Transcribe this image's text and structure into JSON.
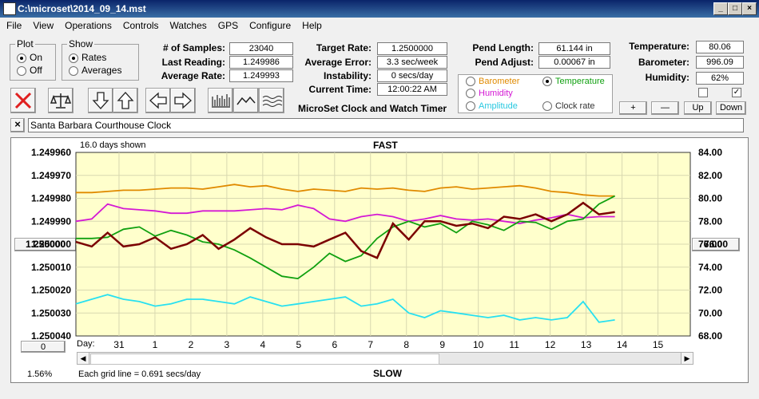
{
  "window": {
    "title": "C:\\microset\\2014_09_14.mst"
  },
  "menu": [
    "File",
    "View",
    "Operations",
    "Controls",
    "Watches",
    "GPS",
    "Configure",
    "Help"
  ],
  "plot_group": {
    "label": "Plot",
    "on": "On",
    "off": "Off",
    "selected": "On"
  },
  "show_group": {
    "label": "Show",
    "rates": "Rates",
    "averages": "Averages",
    "selected": "Rates"
  },
  "stats": {
    "samples_label": "# of Samples:",
    "samples": "23040",
    "last_reading_label": "Last Reading:",
    "last_reading": "1.249986",
    "average_rate_label": "Average Rate:",
    "average_rate": "1.249993",
    "target_rate_label": "Target Rate:",
    "target_rate": "1.2500000",
    "average_error_label": "Average Error:",
    "average_error": "3.3 sec/week",
    "instability_label": "Instability:",
    "instability": "0 secs/day",
    "current_time_label": "Current Time:",
    "current_time": "12:00:22 AM",
    "pend_length_label": "Pend Length:",
    "pend_length": "61.144 in",
    "pend_adjust_label": "Pend Adjust:",
    "pend_adjust": "0.00067 in",
    "temperature_label": "Temperature:",
    "temperature": "80.06",
    "barometer_label": "Barometer:",
    "barometer": "996.09",
    "humidity_label": "Humidity:",
    "humidity": "62%"
  },
  "app_caption": "MicroSet Clock and Watch Timer",
  "aux_legend": {
    "barometer": "Barometer",
    "temperature": "Temperature",
    "humidity": "Humidity",
    "amplitude": "Amplitude",
    "clock_rate": "Clock rate",
    "selected": "Temperature"
  },
  "aux_buttons": {
    "plus": "+",
    "minus": "—",
    "up": "Up",
    "down": "Down"
  },
  "clock_name": "Santa Barbara Courthouse Clock",
  "close_x": "×",
  "chart_header": {
    "days_shown": "16.0 days shown",
    "fast": "FAST",
    "slow": "SLOW"
  },
  "chart_footer": {
    "percent": "1.56%",
    "grid_note": "Each grid line = 0.691 secs/day",
    "day_label": "Day:"
  },
  "offset_box": "1.250000",
  "right_box": "76.00",
  "left_bottom_box": "0",
  "colors": {
    "temperature": "#e08a00",
    "humidity": "#d419d4",
    "clock_rate": "#7b0000",
    "barometer": "#10a010",
    "amplitude": "#28e0f0",
    "plot_bg": "#ffffcc"
  },
  "chart_data": {
    "type": "line",
    "y_left_ticks": [
      "1.249960",
      "1.249970",
      "1.249980",
      "1.249990",
      "1.250000",
      "1.250010",
      "1.250020",
      "1.250030",
      "1.250040"
    ],
    "y_right_ticks": [
      "84.00",
      "82.00",
      "80.00",
      "78.00",
      "76.00",
      "74.00",
      "72.00",
      "70.00",
      "68.00"
    ],
    "x_ticks": [
      "31",
      "1",
      "2",
      "3",
      "4",
      "5",
      "6",
      "7",
      "8",
      "9",
      "10",
      "11",
      "12",
      "13",
      "14",
      "15"
    ],
    "y_left_range": [
      1.24996,
      1.25004
    ],
    "y_right_range": [
      68,
      84
    ],
    "series": [
      {
        "name": "Temperature",
        "axis": "right",
        "values": [
          80.5,
          80.5,
          80.6,
          80.7,
          80.7,
          80.8,
          80.9,
          80.9,
          80.8,
          81.0,
          81.2,
          81.0,
          81.1,
          80.8,
          80.6,
          80.8,
          80.7,
          80.6,
          80.9,
          80.8,
          80.9,
          80.7,
          80.6,
          80.9,
          81.0,
          80.8,
          80.9,
          81.0,
          81.1,
          80.9,
          80.6,
          80.5,
          80.3,
          80.2,
          80.2
        ]
      },
      {
        "name": "Humidity",
        "axis": "right",
        "values": [
          78.0,
          78.2,
          79.5,
          79.1,
          79.0,
          78.9,
          78.7,
          78.7,
          78.9,
          78.9,
          78.9,
          79.0,
          79.1,
          79.0,
          79.4,
          79.1,
          78.2,
          78.0,
          78.4,
          78.6,
          78.4,
          78.0,
          78.2,
          78.5,
          78.2,
          78.1,
          78.2,
          78.0,
          77.8,
          78.1,
          78.3,
          78.6,
          78.3,
          78.4,
          78.4
        ]
      },
      {
        "name": "Barometer",
        "axis": "right",
        "values": [
          76.5,
          76.5,
          76.6,
          77.3,
          77.5,
          76.7,
          77.2,
          76.8,
          76.2,
          76.0,
          75.5,
          74.8,
          74.0,
          73.2,
          73.0,
          74.0,
          75.2,
          74.5,
          75.0,
          76.5,
          77.5,
          78.0,
          77.5,
          77.8,
          77.0,
          78.0,
          77.7,
          77.2,
          78.0,
          77.9,
          77.3,
          78.0,
          78.2,
          79.5,
          80.2
        ]
      },
      {
        "name": "Clock rate",
        "axis": "left",
        "values": [
          1.249999,
          1.250001,
          1.249995,
          1.250001,
          1.25,
          1.249997,
          1.250002,
          1.25,
          1.249996,
          1.250002,
          1.249998,
          1.249993,
          1.249997,
          1.25,
          1.25,
          1.250001,
          1.249998,
          1.249995,
          1.250003,
          1.250006,
          1.249991,
          1.249998,
          1.24999,
          1.24999,
          1.249992,
          1.249991,
          1.249993,
          1.249988,
          1.249989,
          1.249987,
          1.24999,
          1.249987,
          1.249982,
          1.249987,
          1.249986
        ]
      },
      {
        "name": "Amplitude",
        "axis": "left",
        "values": [
          1.250026,
          1.250024,
          1.250022,
          1.250024,
          1.250025,
          1.250027,
          1.250026,
          1.250024,
          1.250024,
          1.250025,
          1.250026,
          1.250023,
          1.250025,
          1.250027,
          1.250026,
          1.250025,
          1.250024,
          1.250023,
          1.250027,
          1.250026,
          1.250024,
          1.25003,
          1.250032,
          1.250029,
          1.25003,
          1.250031,
          1.250032,
          1.250031,
          1.250033,
          1.250032,
          1.250033,
          1.250032,
          1.250025,
          1.250034,
          1.250033
        ]
      }
    ]
  }
}
